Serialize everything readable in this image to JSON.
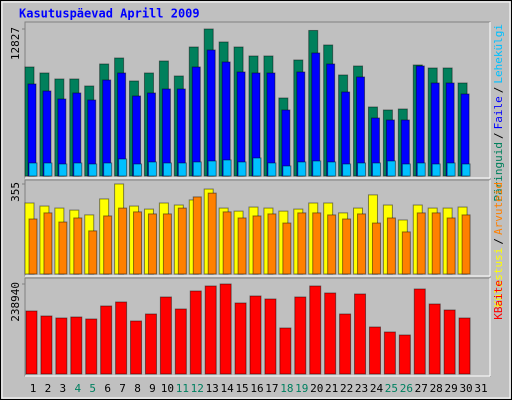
{
  "chart_data": {
    "type": "bar",
    "title": "Kasutuspäevad Aprill 2009",
    "separator": "/",
    "categories": [
      "1",
      "2",
      "3",
      "4",
      "5",
      "6",
      "7",
      "8",
      "9",
      "10",
      "11",
      "12",
      "13",
      "14",
      "15",
      "16",
      "17",
      "18",
      "19",
      "20",
      "21",
      "22",
      "23",
      "24",
      "25",
      "26",
      "27",
      "28",
      "29",
      "30",
      "31"
    ],
    "category_colors": [
      "#000000",
      "#000000",
      "#000000",
      "#008060",
      "#008060",
      "#000000",
      "#000000",
      "#000000",
      "#000000",
      "#000000",
      "#008060",
      "#008060",
      "#000000",
      "#000000",
      "#000000",
      "#000000",
      "#000000",
      "#008060",
      "#008060",
      "#000000",
      "#000000",
      "#000000",
      "#000000",
      "#000000",
      "#008060",
      "#008060",
      "#000000",
      "#000000",
      "#000000",
      "#000000",
      "#000000"
    ],
    "panels": [
      {
        "ylim": [
          0,
          12827
        ],
        "yticks": [
          12827
        ],
        "series": [
          {
            "name": "Päringuid",
            "color": "#00805c",
            "values": [
              9511,
              8988,
              8464,
              8464,
              7853,
              9773,
              10296,
              8289,
              8988,
              10035,
              8726,
              11256,
              12827,
              11693,
              11256,
              10471,
              10471,
              6806,
              10122,
              12700,
              11431,
              8813,
              9598,
              6021,
              5759,
              5846,
              9686,
              9424,
              9424,
              8115,
              null
            ]
          },
          {
            "name": "Faile",
            "color": "#0000ff",
            "values": [
              8028,
              7417,
              6719,
              7243,
              6632,
              8377,
              8988,
              6981,
              7243,
              7592,
              7592,
              9511,
              10995,
              9948,
              9075,
              8988,
              8988,
              5759,
              9075,
              10733,
              9773,
              7330,
              8639,
              5061,
              4887,
              4887,
              9599,
              8115,
              8115,
              7155,
              null
            ]
          },
          {
            "name": "Lehekülgi",
            "color": "#00c0ff",
            "values": [
              1134,
              1134,
              1047,
              1134,
              1047,
              1134,
              1483,
              1047,
              1222,
              1134,
              1134,
              1222,
              1309,
              1396,
              1222,
              1571,
              1134,
              873,
              1222,
              1309,
              1222,
              1047,
              1134,
              1134,
              1309,
              1047,
              1134,
              1047,
              1134,
              1047,
              null
            ]
          }
        ]
      },
      {
        "ylim": [
          0,
          355
        ],
        "yticks": [
          355
        ],
        "series": [
          {
            "name": "Külastusi",
            "color": "#ffff00",
            "values": [
              280,
              268,
              260,
              252,
              233,
              296,
              355,
              268,
              256,
              280,
              272,
              292,
              335,
              260,
              248,
              264,
              260,
              248,
              256,
              280,
              280,
              241,
              260,
              312,
              272,
              213,
              272,
              260,
              260,
              264,
              null
            ]
          },
          {
            "name": "Arvuteid",
            "color": "#ff8000",
            "values": [
              217,
              241,
              205,
              221,
              170,
              229,
              260,
              245,
              237,
              237,
              260,
              304,
              319,
              245,
              221,
              229,
              237,
              201,
              241,
              241,
              233,
              217,
              237,
              201,
              221,
              166,
              241,
              241,
              221,
              233,
              null
            ]
          }
        ]
      },
      {
        "ylim": [
          0,
          238940
        ],
        "yticks": [
          238940
        ],
        "series": [
          {
            "name": "KBaite",
            "color": "#ff0000",
            "values": [
              167259,
              153984,
              148674,
              151329,
              146020,
              180533,
              191153,
              140710,
              159294,
              204427,
              172569,
              220357,
              233631,
              238940,
              188498,
              207082,
              199118,
              122125,
              204427,
              233631,
              215047,
              159294,
              212392,
              124780,
              111506,
              103541,
              225667,
              185843,
              169914,
              148674,
              null
            ]
          }
        ]
      }
    ]
  }
}
